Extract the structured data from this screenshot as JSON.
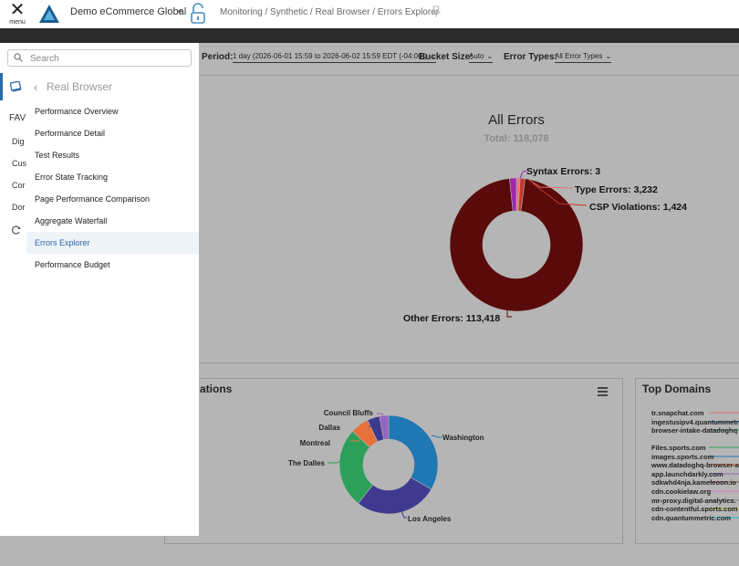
{
  "topbar": {
    "menu_label": "menu",
    "account": "Demo eCommerce Global",
    "breadcrumb": "Monitoring / Synthetic / Real Browser / Errors Explorer"
  },
  "filters": {
    "period_label": "Period:",
    "period_value": "1 day (2026-06-01 15:59 to 2026-06-02 15:59 EDT (-04:00))",
    "bucket_label": "Bucket Size:",
    "bucket_value": "Auto",
    "error_types_label": "Error Types:",
    "error_types_value": "All Error Types"
  },
  "colors": {
    "syntax": "#9c27b0",
    "type": "#e57373",
    "csp": "#c0392b",
    "other": "#5a0a0a",
    "accent": "#2a6aa7"
  },
  "all_errors": {
    "title": "All Errors",
    "total": "Total: 118,078",
    "labels": {
      "syntax": "Syntax Errors: 3",
      "type": "Type Errors: 3,232",
      "csp": "CSP Violations: 1,424",
      "other": "Other Errors: 113,418"
    }
  },
  "chart_data": [
    {
      "type": "pie",
      "title": "All Errors",
      "subtitle": "Total: 118,078",
      "categories": [
        "Syntax Errors",
        "Type Errors",
        "CSP Violations",
        "Other Errors"
      ],
      "values": [
        3,
        3232,
        1424,
        113418
      ]
    },
    {
      "type": "pie",
      "title": "ations",
      "categories": [
        "Washington",
        "Los Angeles",
        "The Dalles",
        "Montreal",
        "Dallas",
        "Council Bluffs"
      ],
      "values": [
        33,
        27,
        26,
        6,
        4,
        3
      ]
    }
  ],
  "locations_panel": {
    "title_fragment": "ations",
    "labels": [
      "Washington",
      "Los Angeles",
      "The Dalles",
      "Montreal",
      "Dallas",
      "Council Bluffs"
    ],
    "colors": [
      "#1f77b4",
      "#3f3a8f",
      "#2ca05a",
      "#e6713a",
      "#3f3a8f",
      "#9467bd"
    ]
  },
  "domains_panel": {
    "title": "Top Domains",
    "items": [
      "tr.snapchat.com",
      "ingestusipv4.quantummetric",
      "browser-intake-datadoghq",
      "Files.sports.com",
      "images.sports.com",
      "www.datadoghq-browser-a",
      "app.launchdarkly.com",
      "sdkwhd4nja.kameleoon.io",
      "cdn.cookielaw.org",
      "mr-proxy.digital-analytics.",
      "cdn-contentful.sports.com",
      "cdn.quantummetric.com"
    ]
  },
  "nav": {
    "search_placeholder": "Search",
    "rail": [
      "FAV",
      "Dig",
      "Cus",
      "Cor",
      "Dor"
    ],
    "submenu_title": "Real Browser",
    "items": [
      "Performance Overview",
      "Performance Detail",
      "Test Results",
      "Error State Tracking",
      "Page Performance Comparison",
      "Aggregate Waterfall",
      "Errors Explorer",
      "Performance Budget"
    ],
    "active_index": 6
  }
}
